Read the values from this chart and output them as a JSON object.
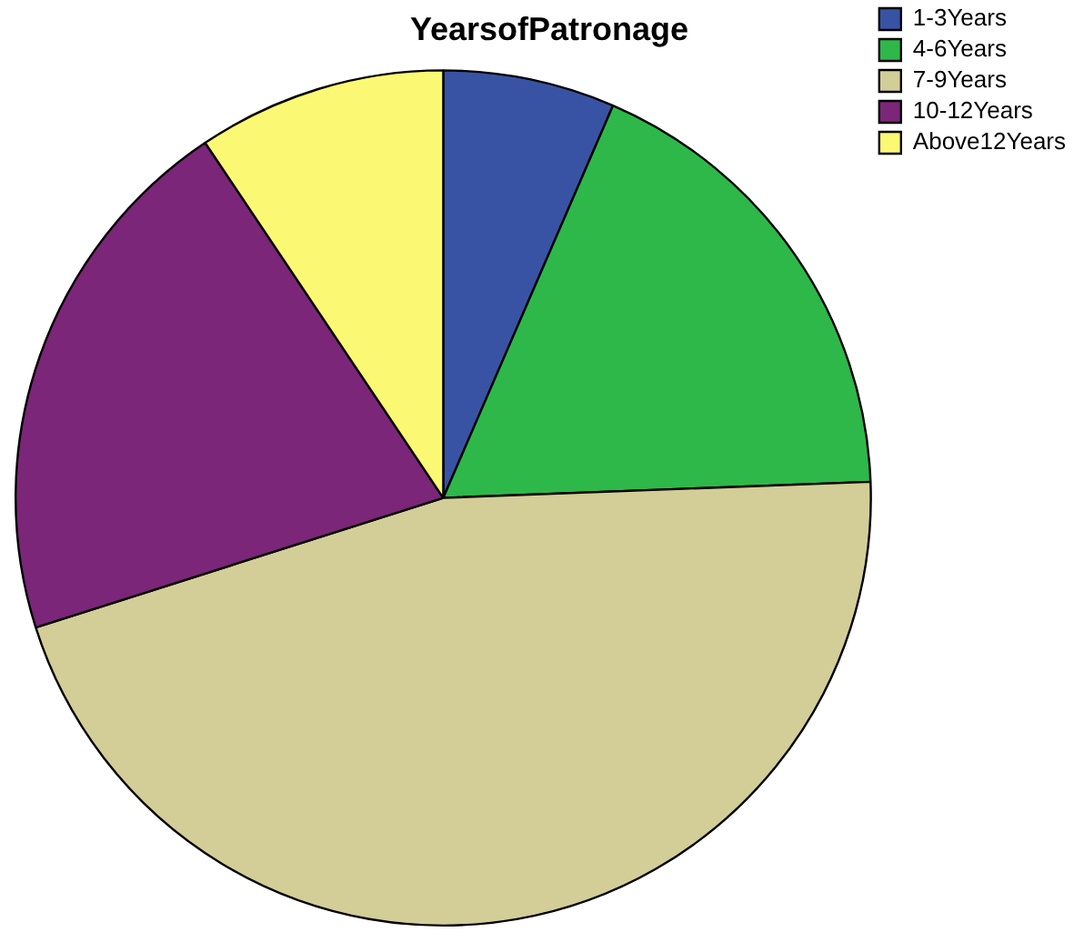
{
  "chart_data": {
    "type": "pie",
    "title": "YearsofPatronage",
    "categories": [
      "1-3Years",
      "4-6Years",
      "7-9Years",
      "10-12Years",
      "Above12Years"
    ],
    "values": [
      6.5,
      17.9,
      45.7,
      20.5,
      9.4
    ],
    "colors": [
      "#3953a4",
      "#2eb84a",
      "#d3ce97",
      "#7b2678",
      "#fbf873"
    ],
    "legend": "top right"
  }
}
